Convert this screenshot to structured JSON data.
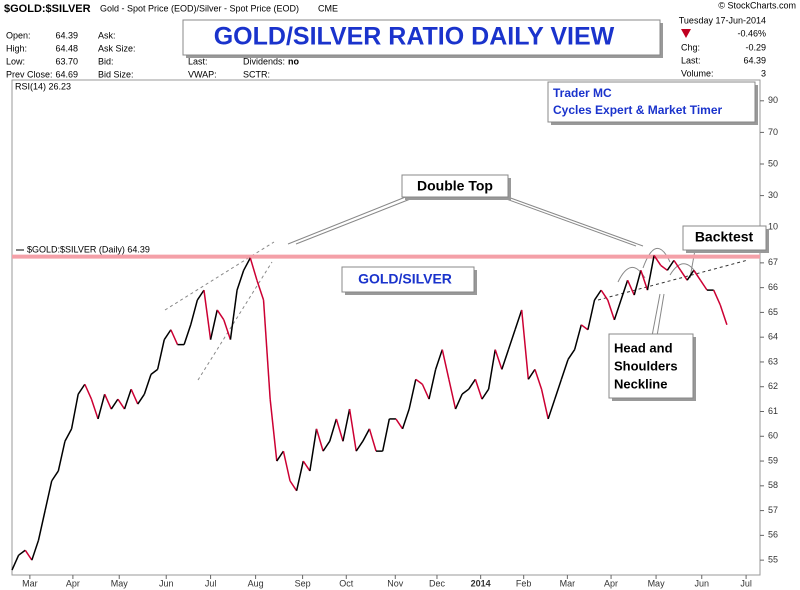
{
  "chart_data": {
    "type": "line",
    "header": {
      "symbol": "$GOLD:$SILVER",
      "description": "Gold - Spot Price (EOD)/Silver - Spot Price (EOD)",
      "exchange": "CME",
      "copyright": "© StockCharts.com"
    },
    "quote": {
      "prices": [
        {
          "label": "Open:",
          "value": "64.39"
        },
        {
          "label": "High:",
          "value": "64.48"
        },
        {
          "label": "Low:",
          "value": "63.70"
        },
        {
          "label": "Prev Close:",
          "value": "64.69"
        }
      ],
      "book": [
        "Ask:",
        "Ask Size:",
        "Bid:",
        "Bid Size:"
      ],
      "last": "Last:",
      "dividends": {
        "label": "Dividends:",
        "value": "no"
      },
      "vwap": "VWAP:",
      "sctr": "SCTR:",
      "date": "Tuesday  17-Jun-2014",
      "change_pct": "-0.46%",
      "stats": [
        {
          "label": "Chg:",
          "value": "-0.29"
        },
        {
          "label": "Last:",
          "value": "64.39"
        },
        {
          "label": "Volume:",
          "value": "3"
        }
      ]
    },
    "title": "GOLD/SILVER RATIO DAILY VIEW",
    "rsi_label": "RSI(14) 26.23",
    "rsi_ylim": [
      0,
      100
    ],
    "rsi_yticks": [
      10,
      30,
      50,
      70,
      90
    ],
    "annotations": {
      "author": "Trader MC",
      "tagline": "Cycles Expert & Market Timer",
      "double_top": "Double Top",
      "pair": "GOLD/SILVER",
      "backtest": "Backtest",
      "neckline": [
        "Head and",
        "Shoulders",
        "Neckline"
      ]
    },
    "resistance_level": 67.25,
    "resistance_color": "#f4a0a8",
    "up_color": "#000000",
    "down_color": "#cc0033",
    "xlim": [
      0,
      113
    ],
    "xticks": [
      {
        "value": 2.7,
        "label": "Mar"
      },
      {
        "value": 9.2,
        "label": "Apr"
      },
      {
        "value": 16.2,
        "label": "May"
      },
      {
        "value": 23.3,
        "label": "Jun"
      },
      {
        "value": 30,
        "label": "Jul"
      },
      {
        "value": 36.8,
        "label": "Aug"
      },
      {
        "value": 43.9,
        "label": "Sep"
      },
      {
        "value": 50.5,
        "label": "Oct"
      },
      {
        "value": 57.9,
        "label": "Nov"
      },
      {
        "value": 64.2,
        "label": "Dec"
      },
      {
        "value": 70.8,
        "label": "2014"
      },
      {
        "value": 77.3,
        "label": "Feb"
      },
      {
        "value": 83.9,
        "label": "Mar"
      },
      {
        "value": 90.5,
        "label": "Apr"
      },
      {
        "value": 97.3,
        "label": "May"
      },
      {
        "value": 104.2,
        "label": "Jun"
      },
      {
        "value": 110.9,
        "label": "Jul"
      }
    ],
    "ylim": [
      54.4,
      67.6
    ],
    "yticks": [
      55,
      56,
      57,
      58,
      59,
      60,
      61,
      62,
      63,
      64,
      65,
      66,
      67
    ],
    "series": [
      {
        "name": "$GOLD:$SILVER (Daily) 64.39",
        "values": [
          54.6,
          55.2,
          55.4,
          55.0,
          55.8,
          57.0,
          58.2,
          58.6,
          59.8,
          60.3,
          61.7,
          62.1,
          61.5,
          60.7,
          61.7,
          61.1,
          61.5,
          61.1,
          61.9,
          61.3,
          61.7,
          62.5,
          62.7,
          63.9,
          64.3,
          63.7,
          63.7,
          64.5,
          65.5,
          65.9,
          63.9,
          65.1,
          64.7,
          63.9,
          65.9,
          66.7,
          67.2,
          66.3,
          65.5,
          61.5,
          59.0,
          59.4,
          58.2,
          57.8,
          59.0,
          58.6,
          60.3,
          59.4,
          59.8,
          60.7,
          59.8,
          61.1,
          59.4,
          59.8,
          60.3,
          59.4,
          59.4,
          60.7,
          60.7,
          60.3,
          61.1,
          62.3,
          62.1,
          61.5,
          62.7,
          63.5,
          62.3,
          61.1,
          61.7,
          61.9,
          62.3,
          61.5,
          61.9,
          63.5,
          62.7,
          63.5,
          64.3,
          65.1,
          62.3,
          62.7,
          61.9,
          60.7,
          61.5,
          62.3,
          63.1,
          63.5,
          64.5,
          64.3,
          65.5,
          65.9,
          65.5,
          64.7,
          65.5,
          66.3,
          65.7,
          66.7,
          65.9,
          67.3,
          66.9,
          66.7,
          67.1,
          66.7,
          66.3,
          66.7,
          66.3,
          65.9,
          65.9,
          65.3,
          64.5
        ]
      }
    ]
  }
}
